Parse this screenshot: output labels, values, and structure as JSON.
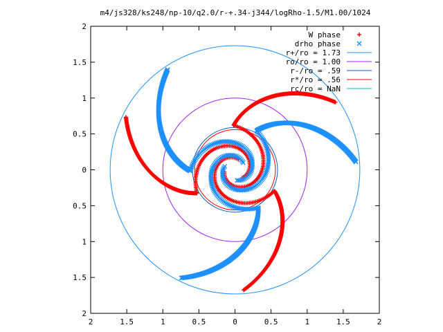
{
  "chart_data": {
    "type": "scatter",
    "title": "m4/js328/ks248/np-10/q2.0/r-+.34-j344/logRho-1.5/M1.00/1024",
    "xlabel": "",
    "ylabel": "",
    "xlim": [
      -2,
      2
    ],
    "ylim": [
      -2,
      2
    ],
    "x_ticks": [
      {
        "value": -2,
        "label": "2"
      },
      {
        "value": -1.5,
        "label": "1.5"
      },
      {
        "value": -1,
        "label": "1"
      },
      {
        "value": -0.5,
        "label": "0.5"
      },
      {
        "value": 0,
        "label": "0"
      },
      {
        "value": 0.5,
        "label": "0.5"
      },
      {
        "value": 1,
        "label": "1"
      },
      {
        "value": 1.5,
        "label": "1.5"
      },
      {
        "value": 2,
        "label": "2"
      }
    ],
    "y_ticks": [
      {
        "value": 2,
        "label": "2"
      },
      {
        "value": 1.5,
        "label": "1.5"
      },
      {
        "value": 1,
        "label": "1"
      },
      {
        "value": 0.5,
        "label": "0.5"
      },
      {
        "value": 0,
        "label": "0"
      },
      {
        "value": -0.5,
        "label": "0.5"
      },
      {
        "value": -1,
        "label": "1"
      },
      {
        "value": -1.5,
        "label": "1.5"
      },
      {
        "value": -2,
        "label": "2"
      }
    ],
    "grid": false,
    "legend_position": "top-right",
    "legend": [
      {
        "label": "W phase",
        "kind": "point",
        "symbol": "+",
        "color": "#ff0000"
      },
      {
        "label": "drho phase",
        "kind": "point",
        "symbol": "x",
        "color": "#1e90ff"
      },
      {
        "label": "r+/ro = 1.73",
        "kind": "line",
        "color": "#1e90ff"
      },
      {
        "label": "ro/ro = 1.00",
        "kind": "line",
        "color": "#a020f0"
      },
      {
        "label": "r-/ro = .59",
        "kind": "line",
        "color": "#1060c0"
      },
      {
        "label": "r*/ro = .56",
        "kind": "line",
        "color": "#ff0000"
      },
      {
        "label": "rc/ro = NaN",
        "kind": "line",
        "color": "#00c0c0"
      }
    ],
    "circles": [
      {
        "name": "r+/ro",
        "r": 1.73,
        "color": "#1e90ff"
      },
      {
        "name": "ro/ro",
        "r": 1.0,
        "color": "#a020f0"
      },
      {
        "name": "r-/ro",
        "r": 0.59,
        "color": "#1060c0"
      },
      {
        "name": "r*/ro",
        "r": 0.56,
        "color": "#ff0000"
      }
    ],
    "series": [
      {
        "name": "W phase",
        "color": "#ff0000",
        "spiral": {
          "arms": 3,
          "phase0": 1.25,
          "b": 0.95,
          "rmin": 0.15,
          "rmax": 1.68,
          "r_break": 0.62
        }
      },
      {
        "name": "drho phase",
        "color": "#1e90ff",
        "spiral": {
          "arms": 3,
          "phase0": 0.72,
          "b": 0.95,
          "rmin": 0.15,
          "rmax": 1.68,
          "r_break": 0.62
        }
      }
    ]
  }
}
